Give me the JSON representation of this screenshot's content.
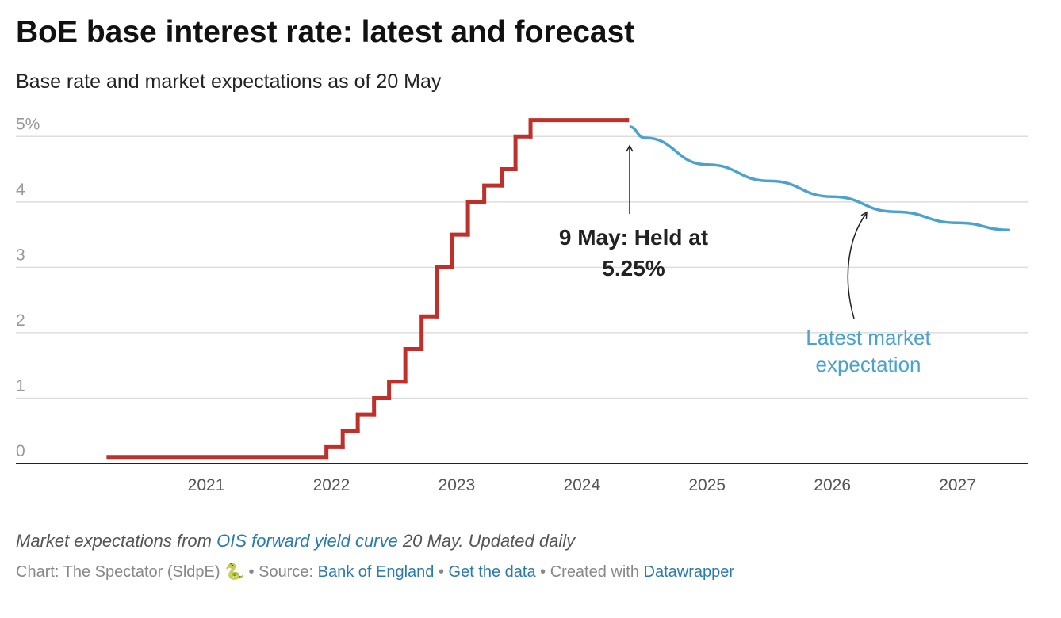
{
  "chart_data": {
    "type": "line",
    "title": "BoE base interest rate: latest and forecast",
    "subtitle": "Base rate and market expectations as of 20 May",
    "xlim": [
      2019.48,
      2027.56
    ],
    "xticks": [
      2021,
      2022,
      2023,
      2024,
      2025,
      2026,
      2027
    ],
    "ylim": [
      0,
      5.5
    ],
    "yticks": [
      0,
      1,
      2,
      3,
      4,
      {
        "value": 5,
        "label": "5%"
      }
    ],
    "grid": true,
    "series": [
      {
        "name": "Base rate",
        "color": "#c0302b",
        "step": true,
        "x": [
          2020.22,
          2021.96,
          2022.09,
          2022.21,
          2022.34,
          2022.46,
          2022.59,
          2022.72,
          2022.84,
          2022.96,
          2023.09,
          2023.22,
          2023.36,
          2023.47,
          2023.59,
          2024.36
        ],
        "values": [
          0.1,
          0.25,
          0.5,
          0.75,
          1.0,
          1.25,
          1.75,
          2.25,
          3.0,
          3.5,
          4.0,
          4.25,
          4.5,
          5.0,
          5.25,
          5.25
        ]
      },
      {
        "name": "Latest market expectation",
        "color": "#4ba3cd",
        "step": false,
        "x": [
          2024.38,
          2024.5,
          2025.0,
          2025.5,
          2026.0,
          2026.5,
          2027.0,
          2027.42
        ],
        "values": [
          5.15,
          4.98,
          4.57,
          4.32,
          4.08,
          3.85,
          3.68,
          3.57
        ]
      }
    ],
    "annotations": [
      {
        "text": [
          "9 May: Held at",
          "5.25%"
        ]
      },
      {
        "text": [
          "Latest market",
          "expectation"
        ]
      }
    ],
    "notes": [
      [
        {
          "text": "Market expectations from "
        },
        {
          "text": "OIS forward yield curve",
          "link": true
        },
        {
          "text": " 20 May. Updated daily"
        }
      ],
      [
        {
          "text": "Chart: The Spectator (SldpE) 🐍"
        },
        {
          "text": " • Source: "
        },
        {
          "text": "Bank of England",
          "link": true
        },
        {
          "text": " • "
        },
        {
          "text": "Get the data",
          "link": true
        },
        {
          "text": " • Created with "
        },
        {
          "text": "Datawrapper",
          "link": true
        }
      ]
    ]
  }
}
